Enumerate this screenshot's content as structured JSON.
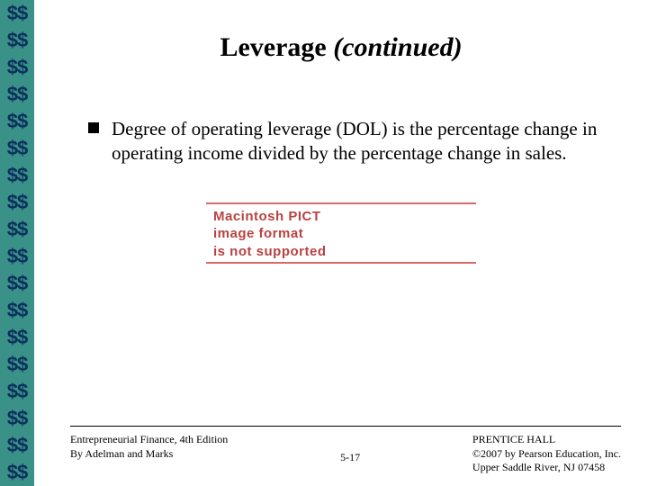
{
  "sidebar": {
    "symbol": "$$",
    "repeat": 18,
    "bg_color": "#3a9188",
    "text_color": "#0a2f5c"
  },
  "title": {
    "main": "Leverage",
    "suffix": "(continued)"
  },
  "bullet": {
    "text": "Degree of operating leverage (DOL) is the percentage change in operating income divided by the percentage change in sales."
  },
  "pict": {
    "line1": "Macintosh PICT",
    "line2": "image format",
    "line3": "is not supported"
  },
  "footer": {
    "left_line1": "Entrepreneurial Finance, 4th Edition",
    "left_line2": "By Adelman and Marks",
    "page": "5-17",
    "right_line1": "PRENTICE HALL",
    "right_line2": "©2007 by Pearson Education, Inc.",
    "right_line3": "Upper Saddle River, NJ 07458"
  }
}
